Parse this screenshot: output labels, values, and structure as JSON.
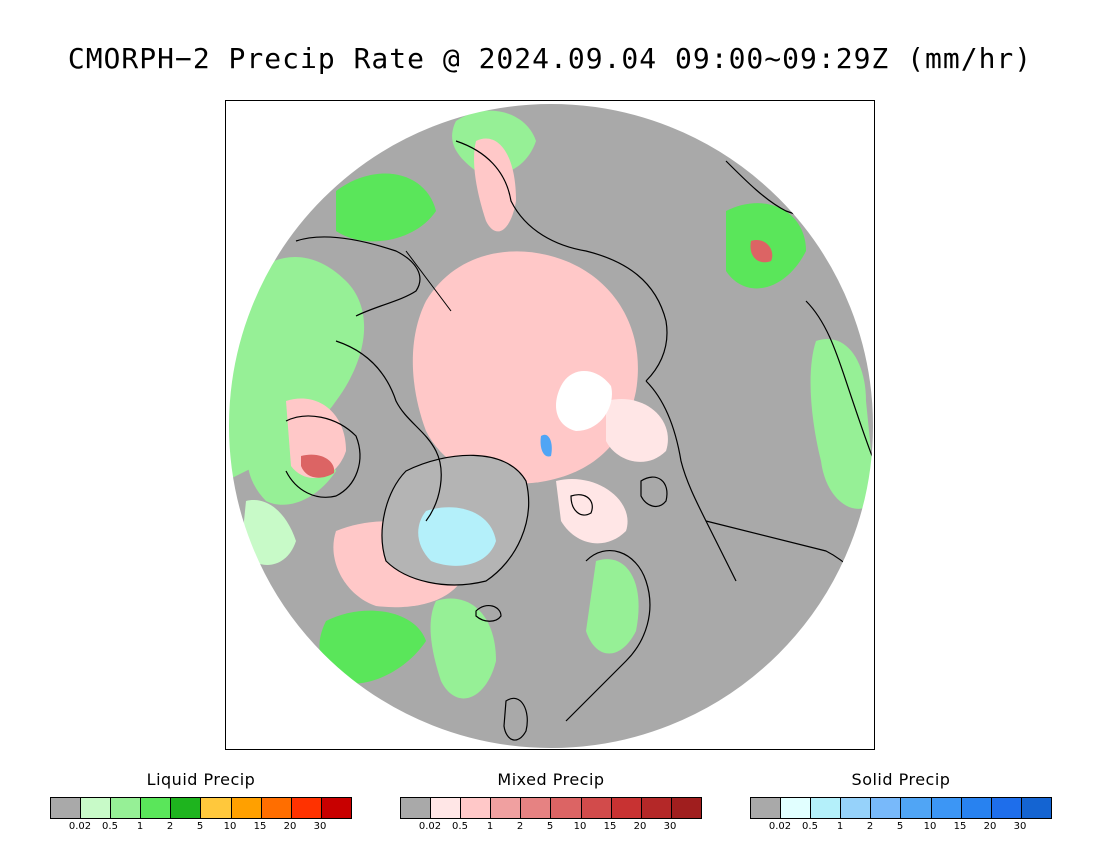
{
  "title": "CMORPH−2 Precip Rate @ 2024.09.04 09:00~09:29Z (mm/hr)",
  "map": {
    "background_color": "#a9a9a9",
    "coastline_color": "#000000",
    "no_data_color": "#ffffff"
  },
  "legends": [
    {
      "title": "Liquid Precip",
      "colors": [
        "#a9a9a9",
        "#c8fac8",
        "#96f096",
        "#5ae65a",
        "#1eb41e",
        "#ffc83c",
        "#ffa000",
        "#ff6e00",
        "#ff3200",
        "#c80000"
      ],
      "ticks": [
        "0.02",
        "0.5",
        "1",
        "2",
        "5",
        "10",
        "15",
        "20",
        "30"
      ]
    },
    {
      "title": "Mixed Precip",
      "colors": [
        "#a9a9a9",
        "#ffe6e6",
        "#ffc8c8",
        "#f0a0a0",
        "#e68282",
        "#dc6464",
        "#d24b4b",
        "#c83232",
        "#b42828",
        "#a01e1e"
      ],
      "ticks": [
        "0.02",
        "0.5",
        "1",
        "2",
        "5",
        "10",
        "15",
        "20",
        "30"
      ]
    },
    {
      "title": "Solid Precip",
      "colors": [
        "#a9a9a9",
        "#e1ffff",
        "#b4f0fa",
        "#96d2fa",
        "#78b9fa",
        "#50a5f5",
        "#3c96f5",
        "#2882f0",
        "#1e6eeb",
        "#1464d2"
      ],
      "ticks": [
        "0.02",
        "0.5",
        "1",
        "2",
        "5",
        "10",
        "15",
        "20",
        "30"
      ]
    }
  ]
}
